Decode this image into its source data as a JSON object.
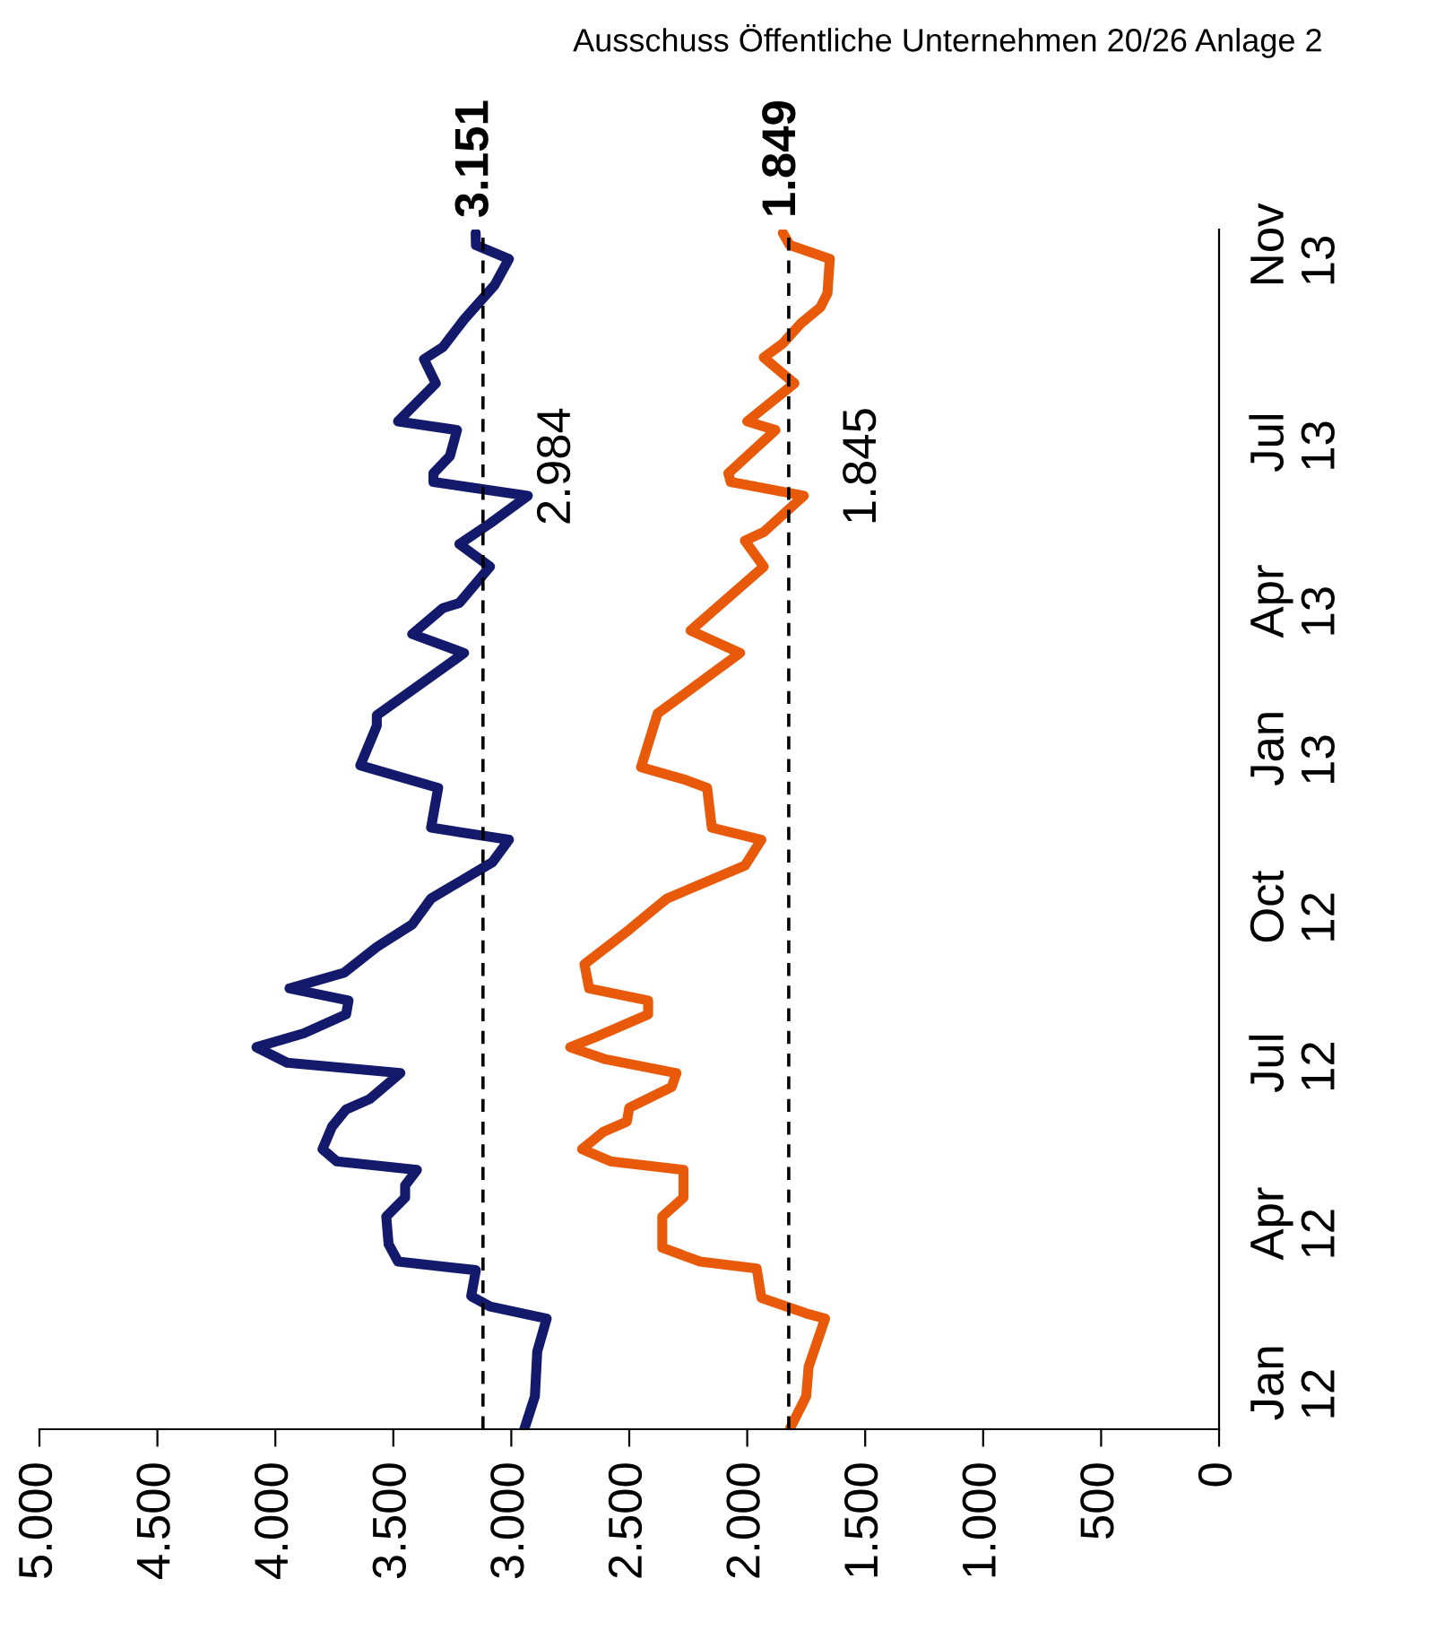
{
  "chart_data": {
    "type": "line",
    "orientation": "horizontal",
    "annotations": [
      "Ausschuss Öffentliche Unternehmen 20/26 Anlage 2",
      {
        "text": "2.984",
        "x": 3120,
        "y": "2013-06-28"
      },
      {
        "text": "1.845",
        "x": 1824,
        "y": "2013-06-28"
      }
    ],
    "xlim": [
      5000,
      0
    ],
    "xticks": [
      {
        "value": 5000,
        "label": "5.000"
      },
      {
        "value": 4500,
        "label": "4.500"
      },
      {
        "value": 4000,
        "label": "4.000"
      },
      {
        "value": 3500,
        "label": "3.500"
      },
      {
        "value": 3000,
        "label": "3.000"
      },
      {
        "value": 2500,
        "label": "2.500"
      },
      {
        "value": 2000,
        "label": "2.000"
      },
      {
        "value": 1500,
        "label": "1.500"
      },
      {
        "value": 1000,
        "label": "1.000"
      },
      {
        "value": 500,
        "label": "500"
      },
      0
    ],
    "ylim": [
      "2011-12-19",
      "2013-11-12"
    ],
    "yticks": [
      {
        "value": "2012-01-15",
        "label": "Jan\n12"
      },
      {
        "value": "2012-04-16",
        "label": "Apr\n12"
      },
      {
        "value": "2012-07-18",
        "label": "Jul\n12"
      },
      {
        "value": "2012-10-16",
        "label": "Oct\n12"
      },
      {
        "value": "2013-01-16",
        "label": "Jan\n13"
      },
      {
        "value": "2013-04-11",
        "label": "Apr\n13"
      },
      {
        "value": "2013-07-12",
        "label": "Jul\n13"
      },
      {
        "value": "2013-11-03",
        "label": "Nov\n13"
      }
    ],
    "grid": false,
    "legend": false,
    "marker": "none",
    "line_style": "solid",
    "ref_lines": [
      {
        "axis": "x",
        "value": 3120,
        "color": "#000000",
        "line_style": "dashed"
      },
      {
        "axis": "x",
        "value": 1824,
        "color": "#000000",
        "line_style": "dashed"
      }
    ],
    "series": [
      {
        "color": "#141a6b",
        "x": [
          "2011-12-19",
          "2012-01-07",
          "2012-02-02",
          "2012-02-21",
          "2012-02-28",
          "2012-03-05",
          "2012-03-20",
          "2012-03-25",
          "2012-04-04",
          "2012-04-20",
          "2012-05-01",
          "2012-05-08",
          "2012-05-17",
          "2012-05-22",
          "2012-05-29",
          "2012-06-11",
          "2012-06-21",
          "2012-06-27",
          "2012-07-12",
          "2012-07-18",
          "2012-07-27",
          "2012-08-04",
          "2012-08-15",
          "2012-08-23",
          "2012-08-30",
          "2012-09-08",
          "2012-09-23",
          "2012-10-06",
          "2012-10-21",
          "2012-11-11",
          "2012-11-24",
          "2012-12-01",
          "2012-12-24",
          "2013-01-06",
          "2013-01-29",
          "2013-02-04",
          "2013-03-12",
          "2013-03-23",
          "2013-04-07",
          "2013-04-10",
          "2013-05-01",
          "2013-05-14",
          "2013-05-26",
          "2013-06-11",
          "2013-06-19",
          "2013-06-24",
          "2013-07-04",
          "2013-07-19",
          "2013-07-24",
          "2013-08-15",
          "2013-08-29",
          "2013-09-05",
          "2013-09-21",
          "2013-10-11",
          "2013-10-26",
          "2013-11-03",
          "2013-11-10"
        ],
        "values": [
          2945,
          2900,
          2890,
          2850,
          3090,
          3170,
          3150,
          3480,
          3520,
          3530,
          3450,
          3450,
          3400,
          3740,
          3800,
          3760,
          3700,
          3600,
          3470,
          3950,
          4080,
          3880,
          3700,
          3690,
          3940,
          3710,
          3570,
          3420,
          3340,
          3080,
          3010,
          3340,
          3310,
          3640,
          3570,
          3570,
          3200,
          3420,
          3290,
          3220,
          3090,
          3220,
          3090,
          2930,
          3330,
          3330,
          3260,
          3230,
          3480,
          3320,
          3370,
          3290,
          3200,
          3070,
          3010,
          3150,
          3151
        ],
        "value_labels": [
          null,
          null,
          null,
          null,
          null,
          null,
          null,
          null,
          null,
          null,
          null,
          null,
          null,
          null,
          null,
          null,
          null,
          null,
          null,
          null,
          null,
          null,
          null,
          null,
          null,
          null,
          null,
          null,
          null,
          null,
          null,
          null,
          null,
          null,
          null,
          null,
          null,
          null,
          null,
          null,
          null,
          null,
          null,
          null,
          null,
          null,
          null,
          null,
          null,
          null,
          null,
          null,
          null,
          null,
          null,
          null,
          "3.151"
        ]
      },
      {
        "color": "#e85a0a",
        "x": [
          "2011-12-19",
          "2012-01-07",
          "2012-01-24",
          "2012-02-21",
          "2012-02-24",
          "2012-03-04",
          "2012-03-21",
          "2012-03-25",
          "2012-04-02",
          "2012-04-20",
          "2012-05-01",
          "2012-05-17",
          "2012-05-22",
          "2012-05-29",
          "2012-06-08",
          "2012-06-14",
          "2012-06-22",
          "2012-07-04",
          "2012-07-12",
          "2012-07-20",
          "2012-07-27",
          "2012-08-02",
          "2012-08-15",
          "2012-08-23",
          "2012-08-30",
          "2012-09-13",
          "2012-10-03",
          "2012-10-11",
          "2012-10-21",
          "2012-11-09",
          "2012-11-24",
          "2012-12-01",
          "2012-12-24",
          "2012-12-29",
          "2013-01-05",
          "2013-02-05",
          "2013-03-12",
          "2013-03-25",
          "2013-05-01",
          "2013-05-16",
          "2013-05-21",
          "2013-06-11",
          "2013-06-19",
          "2013-06-24",
          "2013-07-19",
          "2013-07-24",
          "2013-08-15",
          "2013-08-30",
          "2013-09-07",
          "2013-09-19",
          "2013-09-28",
          "2013-10-06",
          "2013-10-26",
          "2013-11-03",
          "2013-11-10"
        ],
        "values": [
          1820,
          1750,
          1740,
          1670,
          1750,
          1940,
          1960,
          2200,
          2360,
          2360,
          2270,
          2270,
          2580,
          2700,
          2610,
          2510,
          2500,
          2320,
          2300,
          2600,
          2750,
          2640,
          2420,
          2420,
          2670,
          2690,
          2500,
          2430,
          2340,
          2010,
          1940,
          2150,
          2170,
          2270,
          2450,
          2380,
          2030,
          2240,
          1930,
          2010,
          1930,
          1760,
          2070,
          2080,
          1880,
          2000,
          1800,
          1930,
          1850,
          1770,
          1690,
          1660,
          1650,
          1820,
          1849
        ],
        "value_labels": [
          null,
          null,
          null,
          null,
          null,
          null,
          null,
          null,
          null,
          null,
          null,
          null,
          null,
          null,
          null,
          null,
          null,
          null,
          null,
          null,
          null,
          null,
          null,
          null,
          null,
          null,
          null,
          null,
          null,
          null,
          null,
          null,
          null,
          null,
          null,
          null,
          null,
          null,
          null,
          null,
          null,
          null,
          null,
          null,
          null,
          null,
          null,
          null,
          null,
          null,
          null,
          null,
          null,
          null,
          "1.849"
        ]
      }
    ]
  }
}
